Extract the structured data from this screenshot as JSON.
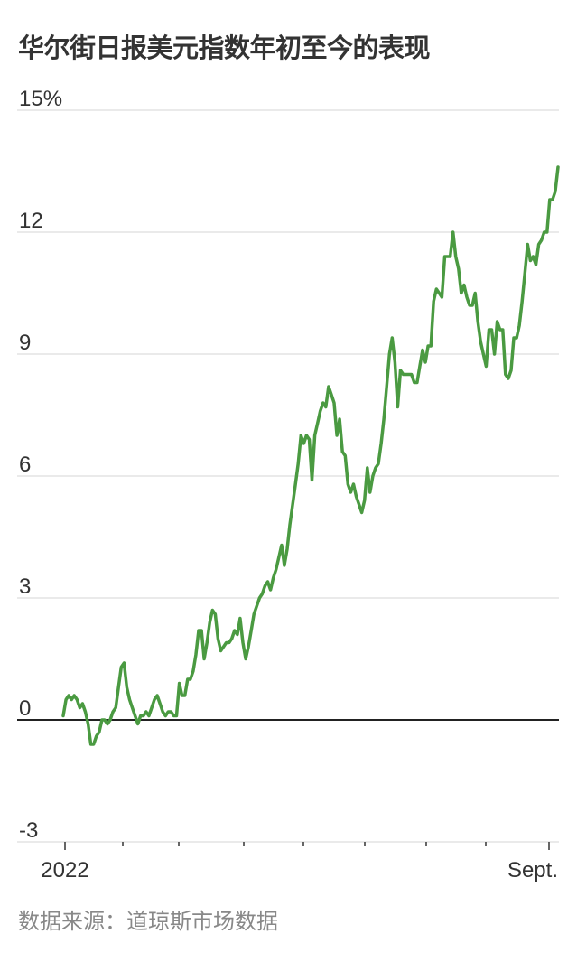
{
  "title": "华尔街日报美元指数年初至今的表现",
  "source": "数据来源：道琼斯市场数据",
  "chart_data": {
    "type": "line",
    "title": "华尔街日报美元指数年初至今的表现",
    "xlabel": "",
    "ylabel": "",
    "y_tick_labels": [
      "15%",
      "12",
      "9",
      "6",
      "3",
      "0",
      "-3"
    ],
    "y_ticks": [
      15,
      12,
      9,
      6,
      3,
      0,
      -3
    ],
    "x_tick_labels": [
      "2022",
      "Sept."
    ],
    "ylim": [
      -3,
      15
    ],
    "grid": true,
    "color": "#4a9a41",
    "series": [
      {
        "values": [
          0.1,
          0.5,
          0.6,
          0.5,
          0.6,
          0.5,
          0.3,
          0.4,
          0.2,
          -0.1,
          -0.6,
          -0.6,
          -0.4,
          -0.3,
          0.0,
          0.0,
          -0.1,
          0.0,
          0.2,
          0.3,
          0.8,
          1.3,
          1.4,
          0.8,
          0.5,
          0.3,
          0.1,
          -0.1,
          0.1,
          0.1,
          0.2,
          0.1,
          0.3,
          0.5,
          0.6,
          0.4,
          0.2,
          0.1,
          0.2,
          0.2,
          0.1,
          0.1,
          0.9,
          0.6,
          0.6,
          1.0,
          1.0,
          1.2,
          1.6,
          2.2,
          2.2,
          1.5,
          1.9,
          2.4,
          2.7,
          2.6,
          2.0,
          1.7,
          1.8,
          1.9,
          1.9,
          2.0,
          2.2,
          2.1,
          2.5,
          1.9,
          1.5,
          1.8,
          2.2,
          2.6,
          2.8,
          3.0,
          3.1,
          3.3,
          3.4,
          3.2,
          3.5,
          3.7,
          4.0,
          4.3,
          3.8,
          4.2,
          4.8,
          5.3,
          5.8,
          6.3,
          7.0,
          6.8,
          7.0,
          6.9,
          5.9,
          7.0,
          7.3,
          7.6,
          7.8,
          7.7,
          8.2,
          8.0,
          7.8,
          7.0,
          7.4,
          6.6,
          6.5,
          5.8,
          5.6,
          5.8,
          5.5,
          5.3,
          5.1,
          5.4,
          6.2,
          5.6,
          6.0,
          6.2,
          6.3,
          6.8,
          7.4,
          8.2,
          9.0,
          9.4,
          8.8,
          7.7,
          8.6,
          8.5,
          8.5,
          8.5,
          8.5,
          8.3,
          8.3,
          8.7,
          9.1,
          8.8,
          9.2,
          9.2,
          10.3,
          10.6,
          10.5,
          10.4,
          11.4,
          11.4,
          11.4,
          12.0,
          11.4,
          11.1,
          10.5,
          10.7,
          10.4,
          10.2,
          10.2,
          10.5,
          9.8,
          9.3,
          9.0,
          8.7,
          9.6,
          9.6,
          9.0,
          9.8,
          9.6,
          9.6,
          8.5,
          8.4,
          8.6,
          9.4,
          9.4,
          9.7,
          10.3,
          11.0,
          11.7,
          11.3,
          11.4,
          11.2,
          11.7,
          11.8,
          12.0,
          12.0,
          12.8,
          12.8,
          13.0,
          13.6
        ]
      }
    ]
  }
}
